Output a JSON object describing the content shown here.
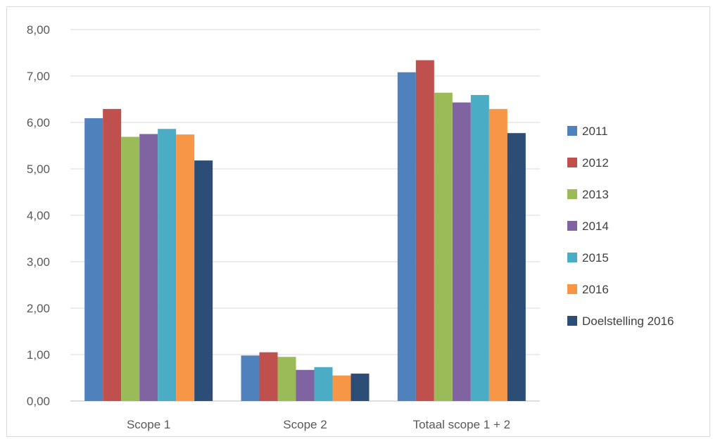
{
  "chart_data": {
    "type": "bar",
    "categories": [
      "Scope 1",
      "Scope 2",
      "Totaal scope 1 + 2"
    ],
    "series": [
      {
        "name": "2011",
        "color": "#4f81bd",
        "values": [
          6.09,
          0.98,
          7.08
        ]
      },
      {
        "name": "2012",
        "color": "#c0504d",
        "values": [
          6.29,
          1.05,
          7.34
        ]
      },
      {
        "name": "2013",
        "color": "#9bbb59",
        "values": [
          5.69,
          0.95,
          6.64
        ]
      },
      {
        "name": "2014",
        "color": "#8064a2",
        "values": [
          5.75,
          0.67,
          6.43
        ]
      },
      {
        "name": "2015",
        "color": "#4bacc6",
        "values": [
          5.86,
          0.73,
          6.59
        ]
      },
      {
        "name": "2016",
        "color": "#f79646",
        "values": [
          5.74,
          0.55,
          6.29
        ]
      },
      {
        "name": "Doelstelling 2016",
        "color": "#2c4d75",
        "values": [
          5.18,
          0.59,
          5.77
        ]
      }
    ],
    "yticks": [
      "0,00",
      "1,00",
      "2,00",
      "3,00",
      "4,00",
      "5,00",
      "6,00",
      "7,00",
      "8,00"
    ],
    "ylim": [
      0,
      8
    ],
    "grid": true,
    "legend_position": "right"
  }
}
